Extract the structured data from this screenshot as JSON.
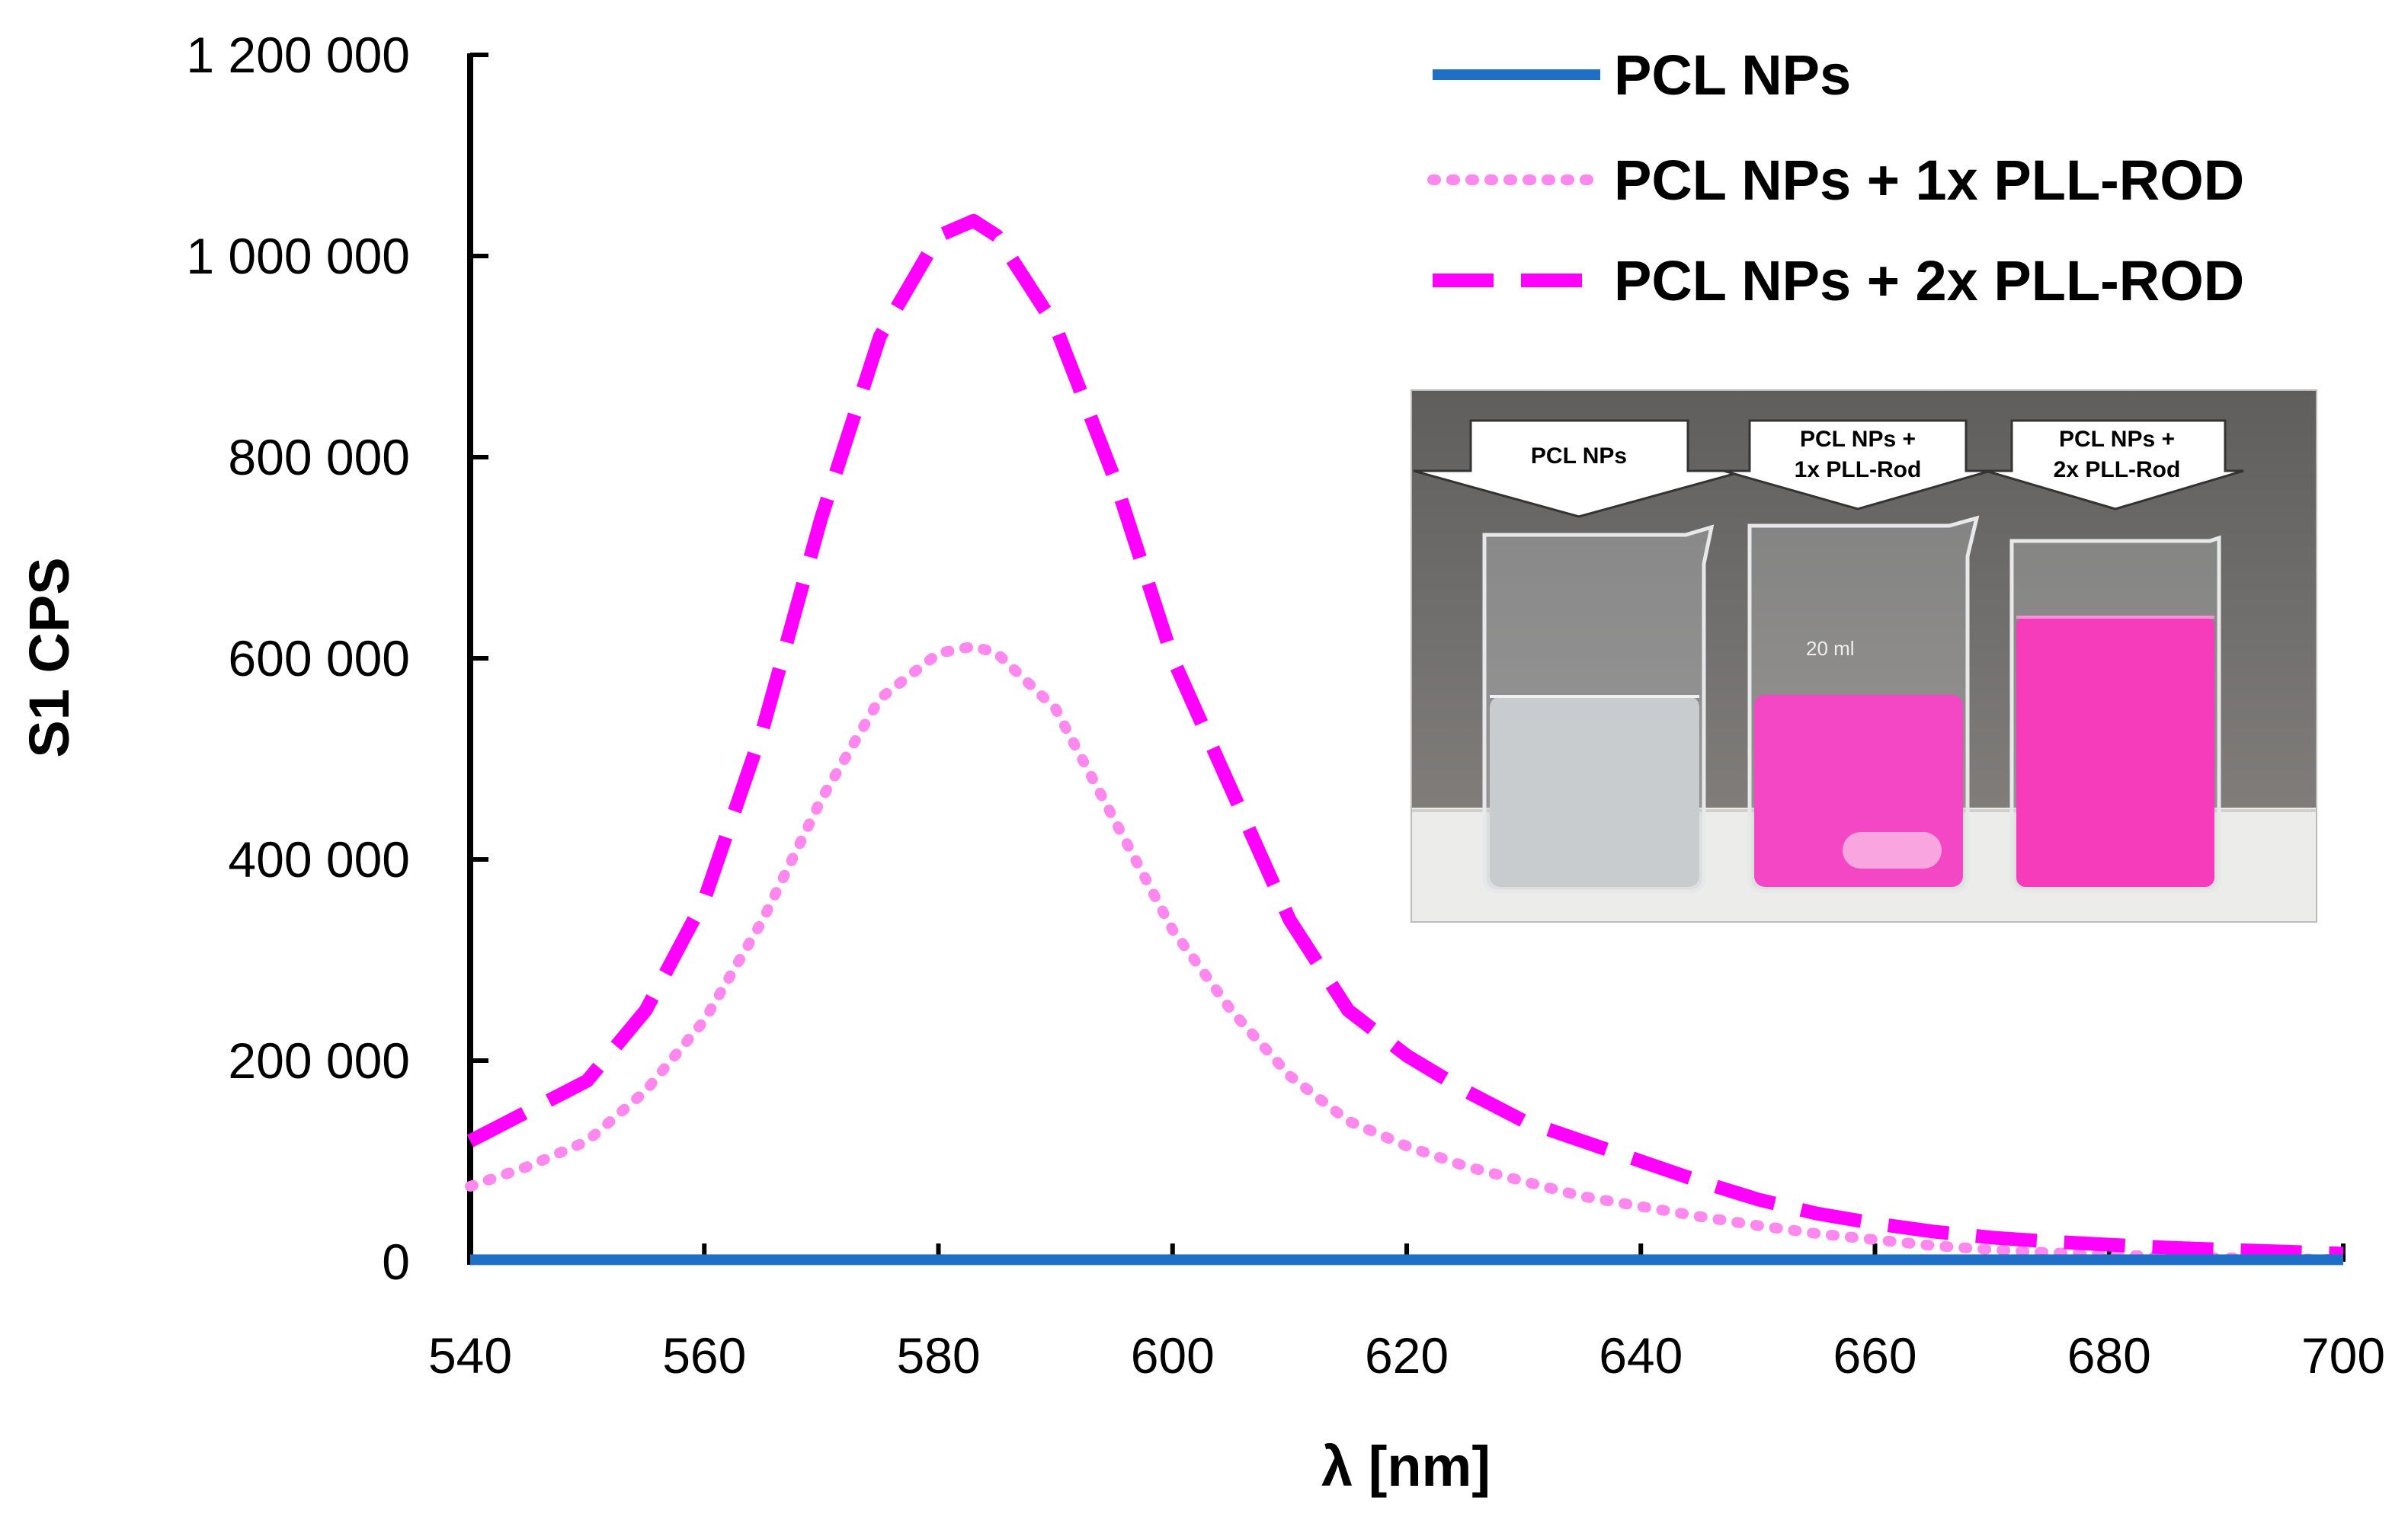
{
  "chart_data": {
    "type": "line",
    "title": "",
    "xlabel": "λ [nm]",
    "ylabel": "S1 CPS",
    "xlim": [
      540,
      700
    ],
    "ylim": [
      0,
      1200000
    ],
    "x_ticks": [
      540,
      560,
      580,
      600,
      620,
      640,
      660,
      680,
      700
    ],
    "y_ticks": [
      0,
      200000,
      400000,
      600000,
      800000,
      1000000,
      1200000
    ],
    "x_tick_labels": [
      "540",
      "560",
      "580",
      "600",
      "620",
      "640",
      "660",
      "680",
      "700"
    ],
    "y_tick_labels": [
      "0",
      "200 000",
      "400 000",
      "600 000",
      "800 000",
      "1 000 000",
      "1 200 000"
    ],
    "grid": false,
    "legend_position": "top-right",
    "x": [
      540,
      545,
      550,
      555,
      560,
      565,
      570,
      575,
      580,
      583,
      585,
      590,
      595,
      600,
      605,
      610,
      615,
      620,
      625,
      630,
      635,
      640,
      645,
      650,
      655,
      660,
      665,
      670,
      675,
      680,
      685,
      690,
      695,
      700
    ],
    "series": [
      {
        "name": "PCL NPs",
        "style": "solid",
        "color": "#1f6fc7",
        "values": [
          2000,
          2000,
          2000,
          2000,
          2000,
          2000,
          2000,
          2000,
          2000,
          2000,
          2000,
          2000,
          2000,
          2000,
          2000,
          2000,
          2000,
          2000,
          2000,
          2000,
          2000,
          2000,
          2000,
          2000,
          2000,
          2000,
          2000,
          2000,
          2000,
          2000,
          2000,
          2000,
          2000,
          2000
        ]
      },
      {
        "name": "PCL NPs + 1x PLL-ROD",
        "style": "dotted",
        "color": "#ff88ee",
        "values": [
          75000,
          95000,
          120000,
          170000,
          240000,
          340000,
          460000,
          560000,
          605000,
          612000,
          605000,
          550000,
          440000,
          330000,
          250000,
          185000,
          140000,
          115000,
          95000,
          80000,
          65000,
          55000,
          45000,
          36000,
          28000,
          22000,
          16000,
          12000,
          9000,
          7000,
          5000,
          4000,
          3000,
          2000
        ]
      },
      {
        "name": "PCL NPs + 2x PLL-ROD",
        "style": "dashed",
        "color": "#ff00ff",
        "values": [
          120000,
          150000,
          180000,
          250000,
          360000,
          530000,
          740000,
          920000,
          1020000,
          1035000,
          1020000,
          930000,
          780000,
          600000,
          470000,
          340000,
          250000,
          205000,
          170000,
          140000,
          120000,
          100000,
          80000,
          62000,
          48000,
          38000,
          30000,
          24000,
          20000,
          17000,
          14000,
          12000,
          10000,
          8000
        ]
      }
    ]
  },
  "inset_photo": {
    "labels": [
      {
        "line1": "PCL NPs",
        "line2": ""
      },
      {
        "line1": "PCL NPs +",
        "line2": "1x PLL-Rod"
      },
      {
        "line1": "PCL NPs +",
        "line2": "2x PLL-Rod"
      }
    ],
    "beaker_marking": "20 ml",
    "colors": {
      "wall": "#6d6b69",
      "table": "#ededeb",
      "clear_liquid": "#c9cdcf",
      "pink_light": "#f447c6",
      "pink_dark": "#f63bbb"
    }
  }
}
